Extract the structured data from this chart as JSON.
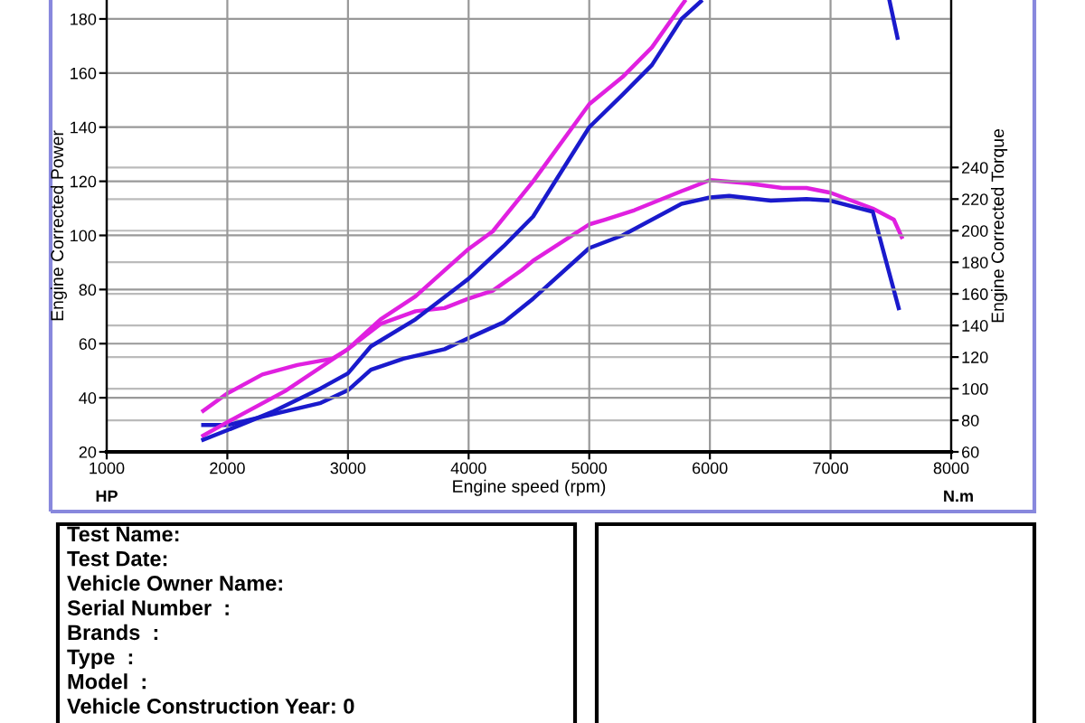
{
  "chart_data": {
    "type": "line",
    "xlabel": "Engine speed (rpm)",
    "ylabel": "Engine Corrected Power",
    "y2label": "Engine Corrected Torque",
    "xlim": [
      1000,
      8000
    ],
    "xticks": [
      1000,
      2000,
      3000,
      4000,
      5000,
      6000,
      7000,
      8000
    ],
    "ylim": [
      20,
      187
    ],
    "yticks": [
      20,
      40,
      60,
      80,
      100,
      120,
      140,
      160,
      180
    ],
    "y2lim": [
      60,
      346
    ],
    "y2ticks": [
      60,
      80,
      100,
      120,
      140,
      160,
      180,
      200,
      220,
      240
    ],
    "grid": true,
    "marker": "none",
    "line_style": "solid",
    "series": [
      {
        "color": "#e020e0",
        "x": [
          1800,
          2000,
          2480,
          3000,
          3270,
          3560,
          4000,
          4200,
          4535,
          5000,
          5275,
          5520,
          5765,
          5790
        ],
        "values": [
          26,
          31,
          42.5,
          58,
          69,
          77.5,
          95,
          101.5,
          120,
          148.5,
          158.5,
          169.5,
          185,
          186.5
        ]
      },
      {
        "color": "#1a1acc",
        "x": [
          1800,
          2000,
          2385,
          2775,
          3000,
          3190,
          3560,
          4000,
          4290,
          4535,
          5000,
          5275,
          5520,
          5765,
          5925,
          6700,
          7490,
          7555
        ],
        "values": [
          24.5,
          28,
          35,
          43.5,
          49,
          59,
          69,
          84,
          96,
          107,
          140,
          152,
          163,
          180,
          186.5,
          null,
          186.5,
          173
        ]
      },
      {
        "color": "#e020e0",
        "axis": "y2",
        "x": [
          1800,
          2000,
          2290,
          2580,
          2870,
          3000,
          3270,
          3560,
          3800,
          4000,
          4200,
          4440,
          4535,
          5000,
          5130,
          5375,
          5765,
          6000,
          6310,
          6600,
          6800,
          7000,
          7350,
          7525,
          7590
        ],
        "values": [
          86,
          97,
          109,
          115,
          119,
          125,
          141,
          149,
          151,
          157,
          162,
          175,
          181,
          204,
          207,
          213,
          225,
          232,
          230,
          227,
          227,
          224,
          214,
          207,
          196
        ]
      },
      {
        "color": "#1a1acc",
        "axis": "y2",
        "x": [
          1800,
          2000,
          2385,
          2775,
          3000,
          3190,
          3460,
          3800,
          4000,
          4290,
          4535,
          5000,
          5275,
          5765,
          6000,
          6160,
          6505,
          6800,
          7000,
          7350,
          7565
        ],
        "values": [
          77,
          77,
          84,
          91,
          99,
          112,
          119,
          125,
          132,
          142,
          157,
          189,
          197,
          217,
          221,
          222,
          219,
          220,
          219,
          212,
          151
        ]
      }
    ],
    "annotations": [
      "HP",
      "N.m",
      "Test Name:",
      "Test Date:",
      "Vehicle Owner Name:",
      "Serial Number  :",
      "Brands  :",
      "Type  :",
      "Model  :",
      "Vehicle Construction Year: 0"
    ]
  }
}
